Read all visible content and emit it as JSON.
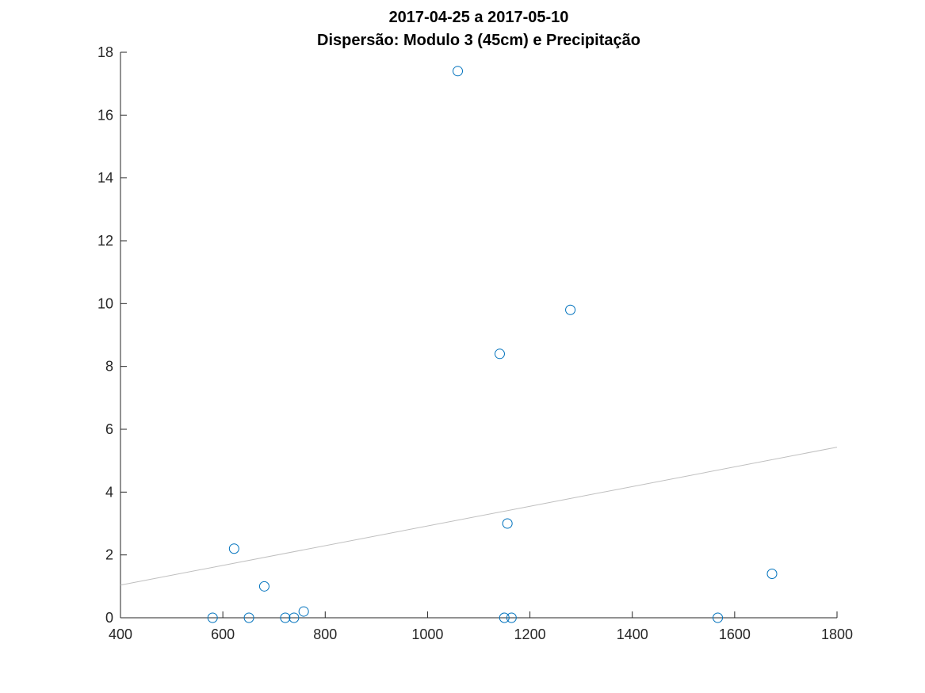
{
  "chart_data": {
    "type": "scatter",
    "title": "2017-04-25 a 2017-05-10",
    "subtitle": "Dispersão: Modulo 3 (45cm) e Precipitação",
    "xlim": [
      400,
      1800
    ],
    "ylim": [
      0,
      18
    ],
    "x_ticks": [
      400,
      600,
      800,
      1000,
      1200,
      1400,
      1600,
      1800
    ],
    "y_ticks": [
      0,
      2,
      4,
      6,
      8,
      10,
      12,
      14,
      16,
      18
    ],
    "grid": false,
    "marker_color": "#0072BD",
    "trend_color": "#bfbfbf",
    "points": [
      {
        "x": 580,
        "y": 0
      },
      {
        "x": 622,
        "y": 2.2
      },
      {
        "x": 651,
        "y": 0
      },
      {
        "x": 681,
        "y": 1.0
      },
      {
        "x": 722,
        "y": 0
      },
      {
        "x": 739,
        "y": 0
      },
      {
        "x": 758,
        "y": 0.2
      },
      {
        "x": 1059,
        "y": 17.4
      },
      {
        "x": 1141,
        "y": 8.4
      },
      {
        "x": 1150,
        "y": 0
      },
      {
        "x": 1156,
        "y": 3.0
      },
      {
        "x": 1164,
        "y": 0
      },
      {
        "x": 1279,
        "y": 9.8
      },
      {
        "x": 1567,
        "y": 0
      },
      {
        "x": 1673,
        "y": 1.4
      }
    ],
    "trendline": {
      "x": [
        400,
        1800
      ],
      "y": [
        1.04,
        5.43
      ]
    }
  }
}
